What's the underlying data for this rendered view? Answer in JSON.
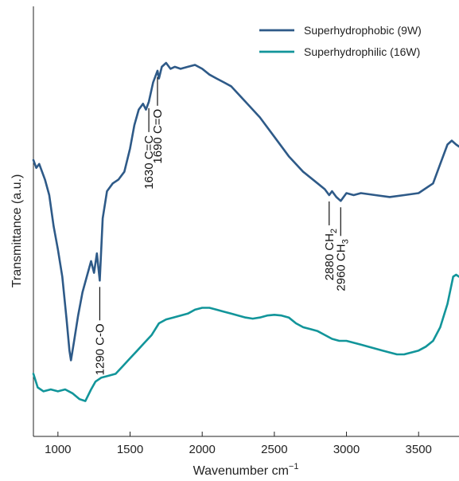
{
  "chart_data": {
    "type": "line",
    "xlabel": "Wavenumber cm",
    "xlabel_superscript": "−1",
    "ylabel": "Transmittance (a.u.)",
    "xlim": [
      830,
      3780
    ],
    "ylim": [
      0,
      1
    ],
    "xticks": [
      "1000",
      "1500",
      "2000",
      "2500",
      "3000",
      "3500"
    ],
    "grid": false,
    "legend_position": "top-right",
    "series": [
      {
        "name": "Superhydrophobic (9W)",
        "color": "#2e5a88",
        "points": [
          [
            830,
            0.67
          ],
          [
            850,
            0.65
          ],
          [
            870,
            0.66
          ],
          [
            890,
            0.64
          ],
          [
            910,
            0.62
          ],
          [
            940,
            0.58
          ],
          [
            970,
            0.5
          ],
          [
            1000,
            0.44
          ],
          [
            1030,
            0.37
          ],
          [
            1060,
            0.26
          ],
          [
            1080,
            0.18
          ],
          [
            1090,
            0.155
          ],
          [
            1110,
            0.2
          ],
          [
            1140,
            0.27
          ],
          [
            1170,
            0.33
          ],
          [
            1200,
            0.37
          ],
          [
            1230,
            0.41
          ],
          [
            1250,
            0.38
          ],
          [
            1270,
            0.43
          ],
          [
            1290,
            0.36
          ],
          [
            1310,
            0.52
          ],
          [
            1340,
            0.59
          ],
          [
            1380,
            0.61
          ],
          [
            1420,
            0.62
          ],
          [
            1460,
            0.64
          ],
          [
            1500,
            0.7
          ],
          [
            1530,
            0.76
          ],
          [
            1560,
            0.8
          ],
          [
            1590,
            0.815
          ],
          [
            1610,
            0.8
          ],
          [
            1630,
            0.82
          ],
          [
            1660,
            0.87
          ],
          [
            1690,
            0.9
          ],
          [
            1700,
            0.88
          ],
          [
            1720,
            0.91
          ],
          [
            1750,
            0.92
          ],
          [
            1780,
            0.905
          ],
          [
            1810,
            0.91
          ],
          [
            1850,
            0.905
          ],
          [
            1900,
            0.91
          ],
          [
            1950,
            0.915
          ],
          [
            2000,
            0.905
          ],
          [
            2050,
            0.89
          ],
          [
            2100,
            0.88
          ],
          [
            2150,
            0.87
          ],
          [
            2200,
            0.86
          ],
          [
            2300,
            0.82
          ],
          [
            2400,
            0.78
          ],
          [
            2500,
            0.73
          ],
          [
            2600,
            0.68
          ],
          [
            2700,
            0.64
          ],
          [
            2800,
            0.61
          ],
          [
            2850,
            0.595
          ],
          [
            2880,
            0.58
          ],
          [
            2900,
            0.59
          ],
          [
            2930,
            0.575
          ],
          [
            2960,
            0.565
          ],
          [
            3000,
            0.585
          ],
          [
            3050,
            0.58
          ],
          [
            3100,
            0.585
          ],
          [
            3200,
            0.58
          ],
          [
            3300,
            0.575
          ],
          [
            3400,
            0.58
          ],
          [
            3500,
            0.585
          ],
          [
            3600,
            0.61
          ],
          [
            3650,
            0.66
          ],
          [
            3700,
            0.71
          ],
          [
            3730,
            0.72
          ],
          [
            3760,
            0.71
          ],
          [
            3780,
            0.705
          ]
        ]
      },
      {
        "name": "Superhydrophilic (16W)",
        "color": "#12959a",
        "points": [
          [
            830,
            0.12
          ],
          [
            860,
            0.085
          ],
          [
            900,
            0.075
          ],
          [
            950,
            0.08
          ],
          [
            1000,
            0.075
          ],
          [
            1050,
            0.08
          ],
          [
            1100,
            0.07
          ],
          [
            1150,
            0.055
          ],
          [
            1190,
            0.05
          ],
          [
            1230,
            0.08
          ],
          [
            1260,
            0.1
          ],
          [
            1300,
            0.11
          ],
          [
            1350,
            0.115
          ],
          [
            1400,
            0.12
          ],
          [
            1450,
            0.14
          ],
          [
            1500,
            0.16
          ],
          [
            1550,
            0.18
          ],
          [
            1600,
            0.2
          ],
          [
            1650,
            0.22
          ],
          [
            1700,
            0.25
          ],
          [
            1750,
            0.26
          ],
          [
            1800,
            0.265
          ],
          [
            1850,
            0.27
          ],
          [
            1900,
            0.275
          ],
          [
            1950,
            0.285
          ],
          [
            2000,
            0.29
          ],
          [
            2050,
            0.29
          ],
          [
            2100,
            0.285
          ],
          [
            2150,
            0.28
          ],
          [
            2200,
            0.275
          ],
          [
            2250,
            0.27
          ],
          [
            2300,
            0.265
          ],
          [
            2350,
            0.262
          ],
          [
            2400,
            0.265
          ],
          [
            2450,
            0.27
          ],
          [
            2500,
            0.272
          ],
          [
            2550,
            0.27
          ],
          [
            2600,
            0.265
          ],
          [
            2650,
            0.25
          ],
          [
            2700,
            0.24
          ],
          [
            2750,
            0.235
          ],
          [
            2800,
            0.23
          ],
          [
            2850,
            0.22
          ],
          [
            2900,
            0.21
          ],
          [
            2950,
            0.205
          ],
          [
            3000,
            0.205
          ],
          [
            3050,
            0.2
          ],
          [
            3100,
            0.195
          ],
          [
            3150,
            0.19
          ],
          [
            3200,
            0.185
          ],
          [
            3250,
            0.18
          ],
          [
            3300,
            0.175
          ],
          [
            3350,
            0.17
          ],
          [
            3400,
            0.17
          ],
          [
            3450,
            0.175
          ],
          [
            3500,
            0.18
          ],
          [
            3550,
            0.19
          ],
          [
            3600,
            0.205
          ],
          [
            3650,
            0.24
          ],
          [
            3700,
            0.3
          ],
          [
            3740,
            0.37
          ],
          [
            3760,
            0.375
          ],
          [
            3780,
            0.37
          ]
        ]
      }
    ],
    "annotations": [
      {
        "id": "c-o",
        "label": "1290 C-O",
        "x": 1290,
        "side": "below"
      },
      {
        "id": "c-c",
        "label": "1630 C=C",
        "x": 1630,
        "side": "below"
      },
      {
        "id": "c-o2",
        "label": "1690 C=O",
        "x": 1690,
        "side": "below"
      },
      {
        "id": "ch2",
        "label": "2880 CH",
        "subscript": "2",
        "x": 2880,
        "side": "below"
      },
      {
        "id": "ch3",
        "label": "2960 CH",
        "subscript": "3",
        "x": 2960,
        "side": "below"
      }
    ]
  }
}
